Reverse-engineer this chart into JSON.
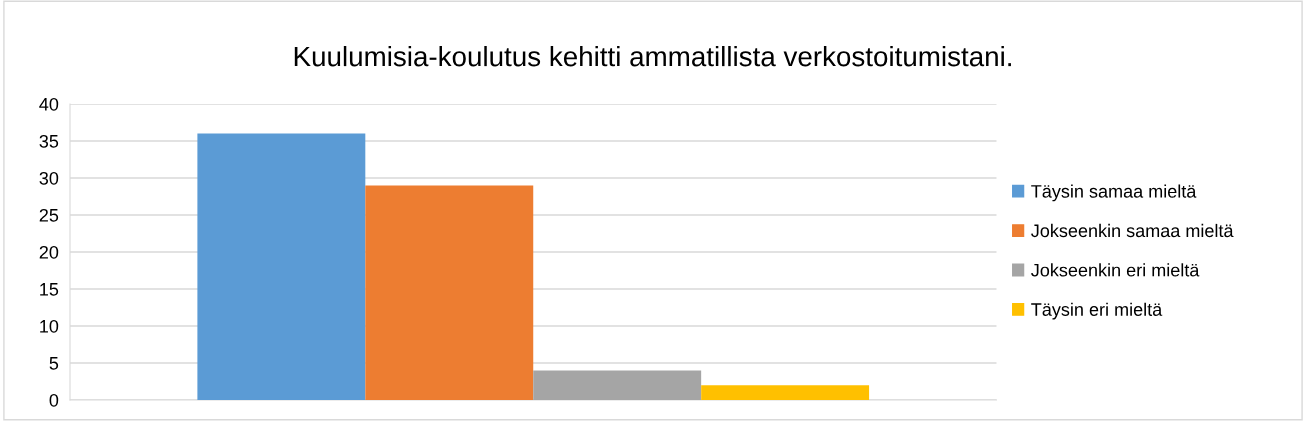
{
  "chart_data": {
    "type": "bar",
    "title": "Kuulumisia-koulutus kehitti ammatillista verkostoitumistani.",
    "categories": [
      null
    ],
    "series": [
      {
        "name": "Täysin samaa mieltä",
        "color": "#5b9bd5",
        "values": [
          36
        ]
      },
      {
        "name": "Jokseenkin samaa mieltä",
        "color": "#ed7d31",
        "values": [
          29
        ]
      },
      {
        "name": "Jokseenkin eri mieltä",
        "color": "#a5a5a5",
        "values": [
          4
        ]
      },
      {
        "name": "Täysin eri mieltä",
        "color": "#ffc000",
        "values": [
          2
        ]
      }
    ],
    "ylim": [
      0,
      40
    ],
    "yticks": [
      0,
      5,
      10,
      15,
      20,
      25,
      30,
      35,
      40
    ],
    "grid": "y",
    "legend": "right"
  }
}
